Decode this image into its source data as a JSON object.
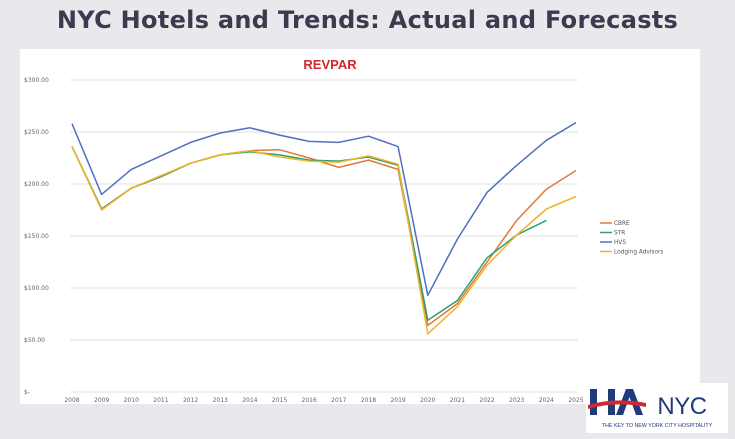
{
  "slide": {
    "title": "NYC Hotels and Trends: Actual and Forecasts"
  },
  "logo": {
    "name": "HANYC",
    "tagline": "THE KEY TO NEW YORK CITY HOSPITALITY"
  },
  "chart_data": {
    "type": "line",
    "title": "REVPAR",
    "title_color": "#d22630",
    "xlabel": "",
    "ylabel": "",
    "x": [
      "2008",
      "2009",
      "2010",
      "2011",
      "2012",
      "2013",
      "2014",
      "2015",
      "2016",
      "2017",
      "2018",
      "2019",
      "2020",
      "2021",
      "2022",
      "2023",
      "2024",
      "2025"
    ],
    "ylim": [
      0,
      300
    ],
    "yticks": [
      0,
      50,
      100,
      150,
      200,
      250,
      300
    ],
    "ytick_labels": [
      "$-",
      "$50.00",
      "$100.00",
      "$150.00",
      "$200.00",
      "$250.00",
      "$300.00"
    ],
    "grid": "horizontal",
    "legend_position": "right",
    "series": [
      {
        "name": "CBRE",
        "color": "#e07b39",
        "values": [
          236,
          176,
          196,
          207,
          220,
          228,
          232,
          233,
          225,
          216,
          223,
          214,
          64,
          85,
          125,
          165,
          195,
          213
        ]
      },
      {
        "name": "STR",
        "color": "#2e9e73",
        "values": [
          236,
          176,
          196,
          207,
          220,
          228,
          231,
          228,
          223,
          222,
          226,
          218,
          69,
          88,
          129,
          151,
          165,
          null
        ]
      },
      {
        "name": "HVS",
        "color": "#4f6fbf",
        "values": [
          258,
          190,
          214,
          227,
          240,
          249,
          254,
          247,
          241,
          240,
          246,
          236,
          93,
          147,
          192,
          218,
          242,
          259
        ]
      },
      {
        "name": "Lodging Advisors",
        "color": "#f0b429",
        "values": [
          236,
          175,
          196,
          208,
          220,
          228,
          232,
          226,
          222,
          221,
          227,
          219,
          56,
          82,
          122,
          151,
          176,
          188
        ]
      }
    ]
  }
}
